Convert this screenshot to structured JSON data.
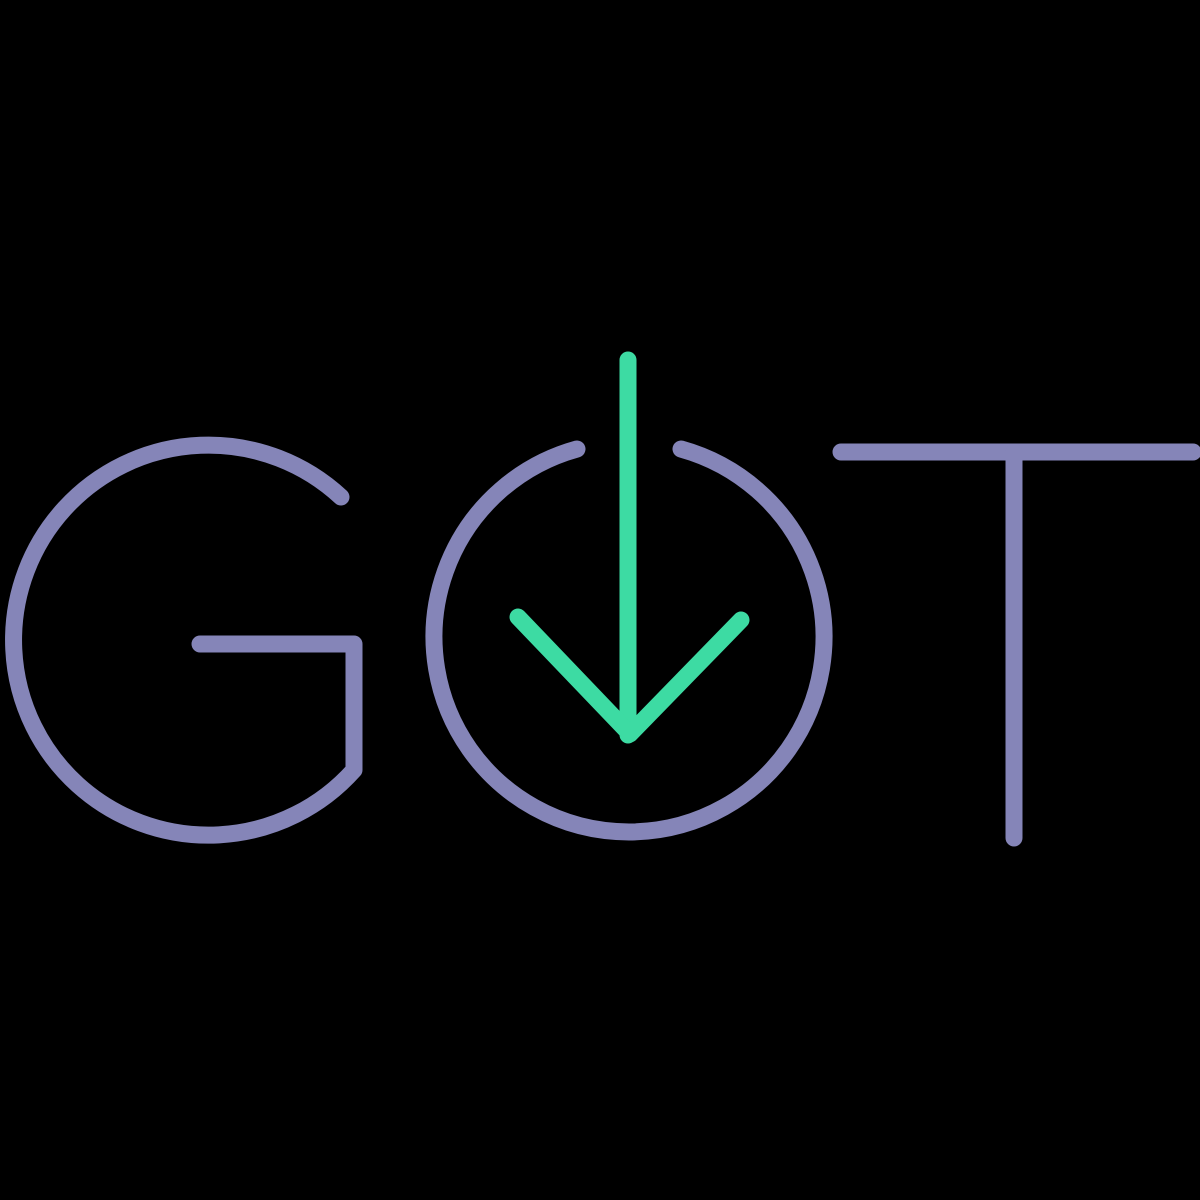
{
  "logo": {
    "text": "GOT",
    "icon": "download-arrow-icon",
    "colors": {
      "background": "#000000",
      "letters": "#8585B8",
      "arrow": "#3DDBA3"
    }
  }
}
